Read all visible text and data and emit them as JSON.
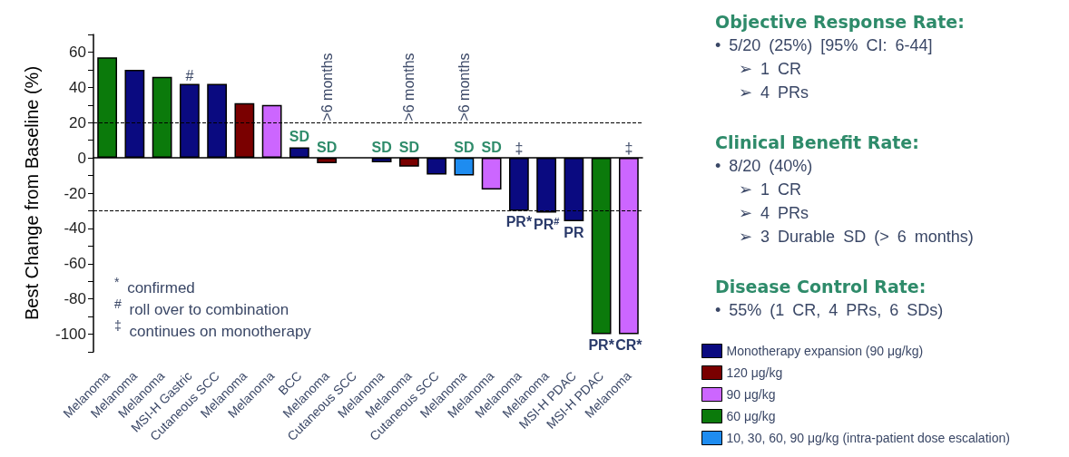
{
  "chart_data": [
    {
      "type": "bar",
      "ylabel": "Best Change from Baseline (%)",
      "categories": [
        "Melanoma",
        "Melanoma",
        "Melanoma",
        "MSI-H Gastric",
        "Cutaneous SCC",
        "Melanoma",
        "Melanoma",
        "BCC",
        "Melanoma",
        "Cutaneous SCC",
        "Melanoma",
        "Melanoma",
        "Cutaneous SCC",
        "Melanoma",
        "Melanoma",
        "Melanoma",
        "Melanoma",
        "MSI-H PDAC",
        "MSI-H PDAC",
        "Melanoma"
      ],
      "series": [
        {
          "name": "Monotherapy expansion (90 μg/kg)",
          "color": "#0a0a80",
          "values": [
            null,
            50,
            null,
            42,
            42,
            null,
            null,
            6,
            null,
            null,
            -2.5,
            null,
            -9.5,
            null,
            null,
            -30,
            -31,
            -36,
            null,
            null
          ],
          "value_labels": [
            null,
            null,
            null,
            null,
            null,
            null,
            null,
            "SD",
            null,
            null,
            "SD",
            null,
            null,
            null,
            null,
            "PR*",
            "PR$^{#}$",
            "PR",
            null,
            null
          ]
        },
        {
          "name": "120 μg/kg",
          "color": "#7a0000",
          "values": [
            null,
            null,
            null,
            null,
            null,
            31,
            null,
            null,
            -3,
            null,
            null,
            -5,
            null,
            null,
            null,
            null,
            null,
            null,
            null,
            null
          ],
          "value_labels": [
            null,
            null,
            null,
            null,
            null,
            null,
            null,
            null,
            "SD",
            null,
            null,
            "SD",
            null,
            null,
            null,
            null,
            null,
            null,
            null,
            null
          ]
        },
        {
          "name": "90 μg/kg",
          "color": "#cc66ff",
          "values": [
            null,
            null,
            null,
            null,
            null,
            null,
            30,
            null,
            null,
            null,
            null,
            null,
            null,
            null,
            -18,
            null,
            null,
            null,
            null,
            -100
          ],
          "value_labels": [
            null,
            null,
            null,
            null,
            null,
            null,
            null,
            null,
            null,
            null,
            null,
            null,
            null,
            null,
            "SD",
            null,
            null,
            null,
            null,
            "CR*"
          ]
        },
        {
          "name": "60 μg/kg",
          "color": "#0b7a0b",
          "values": [
            57,
            null,
            46,
            null,
            null,
            null,
            null,
            null,
            null,
            null,
            null,
            null,
            null,
            null,
            null,
            null,
            null,
            null,
            -100,
            null
          ],
          "value_labels": [
            null,
            null,
            null,
            null,
            null,
            null,
            null,
            null,
            null,
            null,
            null,
            null,
            null,
            null,
            null,
            null,
            null,
            null,
            "PR*",
            null
          ]
        },
        {
          "name": "10, 30, 60, 90 μg/kg (intra-patient dose escalation)",
          "color": "#1e8cf0",
          "values": [
            null,
            null,
            null,
            null,
            null,
            null,
            null,
            null,
            null,
            null,
            null,
            null,
            null,
            -10,
            null,
            null,
            null,
            null,
            null,
            null
          ],
          "value_labels": [
            null,
            null,
            null,
            null,
            null,
            null,
            null,
            null,
            null,
            null,
            null,
            null,
            null,
            "SD",
            null,
            null,
            null,
            null,
            null,
            null
          ]
        }
      ],
      "ylim": [
        -110,
        70
      ],
      "yticks": [
        {
          "value": -110,
          "label": null
        },
        -100,
        {
          "value": -90,
          "label": null
        },
        -80,
        {
          "value": -70,
          "label": null
        },
        -60,
        {
          "value": -50,
          "label": null
        },
        -40,
        {
          "value": -30,
          "label": null
        },
        -20,
        {
          "value": -10,
          "label": null
        },
        0,
        {
          "value": 10,
          "label": null
        },
        20,
        {
          "value": 30,
          "label": null
        },
        40,
        {
          "value": 50,
          "label": null
        },
        60,
        {
          "value": 70,
          "label": null
        }
      ],
      "ref_lines": [
        {
          "axis": "y",
          "value": 20,
          "line_style": "dashed",
          "color": "#000000"
        },
        {
          "axis": "y",
          "value": -30,
          "line_style": "dashed",
          "color": "#000000"
        }
      ],
      "legend": "bottom right",
      "annotations": [
        "$^{*}$ confirmed",
        "$^{#}$ roll over to combination",
        "$^{‡}$ continues on monotherapy",
        "#",
        ">6 months",
        ">6 months",
        ">6 months",
        "‡",
        "‡"
      ]
    },
    {
      "type": "other",
      "title": "Objective Response Rate:",
      "annotations": [
        "• 5/20 (25%) [95% CI: 6-44]",
        "➢ 1 CR",
        "➢ 4 PRs"
      ]
    },
    {
      "type": "other",
      "title": "Clinical Benefit Rate:",
      "annotations": [
        "• 8/20 (40%)",
        "➢ 1 CR",
        "➢ 4 PRs",
        "➢ 3 Durable SD (> 6 months)"
      ]
    },
    {
      "type": "other",
      "title": "Disease Control Rate:",
      "annotations": [
        "• 55% (1 CR, 4 PRs, 6 SDs)"
      ]
    }
  ]
}
